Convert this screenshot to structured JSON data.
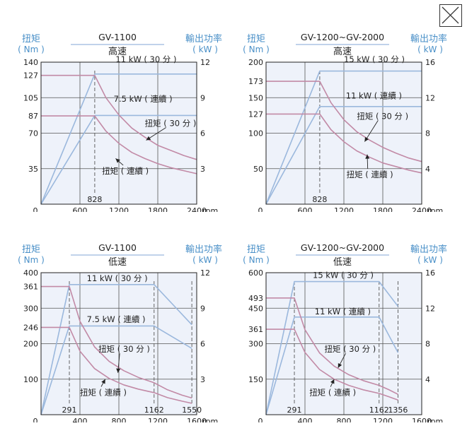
{
  "window": {
    "close_icon": "close-x-icon"
  },
  "colors": {
    "unit_label": "#4a90c8",
    "plot_bg": "#eef2fa",
    "grid": "#555555",
    "power": "#9bb8dd",
    "torque": "#c28aa6",
    "dashed": "#555555",
    "title_rule": "#9bb8dd"
  },
  "axis_units": {
    "torque": "扭矩",
    "torque_unit": "( Nm )",
    "power": "輸出功率",
    "power_unit": "( kW )",
    "rpm": "rpm"
  },
  "chart_data": [
    {
      "type": "line",
      "model": "GV-1100",
      "speed_range": "高速",
      "xlim": [
        0,
        2400
      ],
      "ylim_torque": [
        0,
        140
      ],
      "ylim_power": [
        0,
        12
      ],
      "x_ticks": [
        "0",
        "600",
        "1200",
        "1800",
        "2400"
      ],
      "x_tick_values": [
        0,
        600,
        1200,
        1800,
        2400
      ],
      "y_ticks": [
        "140",
        "127",
        "105",
        "87",
        "70",
        "35"
      ],
      "y_tick_values": [
        140,
        127,
        105,
        87,
        70,
        35
      ],
      "y2_ticks": [
        "12",
        "9",
        "6",
        "3"
      ],
      "y2_tick_values": [
        12,
        9,
        6,
        3
      ],
      "dashed_x": [
        {
          "value": 828,
          "label": "828"
        }
      ],
      "grid_x": [
        600,
        1200,
        1800
      ],
      "grid_y": [
        105,
        70,
        35
      ],
      "series": [
        {
          "name": "11 kW ( 30 分 )",
          "kind": "power",
          "x": [
            0,
            828,
            2400
          ],
          "y": [
            0,
            11.0,
            11.0
          ]
        },
        {
          "name": "7.5 kW ( 連續 )",
          "kind": "power",
          "x": [
            0,
            828,
            2400
          ],
          "y": [
            0,
            7.5,
            7.5
          ]
        },
        {
          "name": "扭矩 ( 30 分 )",
          "kind": "torque",
          "x": [
            0,
            828,
            1000,
            1200,
            1400,
            1600,
            1800,
            2000,
            2200,
            2400
          ],
          "y": [
            127,
            127,
            105,
            88,
            75,
            66,
            58,
            53,
            48,
            44
          ]
        },
        {
          "name": "扭矩 ( 連續 )",
          "kind": "torque",
          "x": [
            0,
            828,
            1000,
            1200,
            1400,
            1600,
            1800,
            2000,
            2200,
            2400
          ],
          "y": [
            87,
            87,
            72,
            60,
            51,
            45,
            40,
            36,
            33,
            30
          ]
        }
      ],
      "labels": [
        {
          "text": "11 kW ( 30 分 )",
          "at_x": 1150,
          "at_y": 140,
          "axis": "torque",
          "arrow": false
        },
        {
          "text": "7.5 kW ( 連續 )",
          "at_x": 1120,
          "at_y": 101,
          "axis": "torque",
          "arrow": false
        },
        {
          "text": "扭矩 ( 30 分 )",
          "at_x": 1600,
          "at_y": 77,
          "axis": "torque",
          "arrow": true,
          "arrow_to": [
            1620,
            63
          ]
        },
        {
          "text": "扭矩 ( 連續 )",
          "at_x": 940,
          "at_y": 30,
          "axis": "torque",
          "arrow": true,
          "arrow_to": [
            1150,
            45
          ]
        }
      ]
    },
    {
      "type": "line",
      "model": "GV-1200~GV-2000",
      "speed_range": "高速",
      "xlim": [
        0,
        2400
      ],
      "ylim_torque": [
        0,
        200
      ],
      "ylim_power": [
        0,
        16
      ],
      "x_ticks": [
        "0",
        "600",
        "1200",
        "1800",
        "2400"
      ],
      "x_tick_values": [
        0,
        600,
        1200,
        1800,
        2400
      ],
      "y_ticks": [
        "200",
        "173",
        "150",
        "127",
        "100",
        "50"
      ],
      "y_tick_values": [
        200,
        173,
        150,
        127,
        100,
        50
      ],
      "y2_ticks": [
        "16",
        "12",
        "8",
        "4"
      ],
      "y2_tick_values": [
        16,
        12,
        8,
        4
      ],
      "dashed_x": [
        {
          "value": 828,
          "label": "828"
        }
      ],
      "grid_x": [
        600,
        1200,
        1800
      ],
      "grid_y": [
        150,
        100,
        50
      ],
      "series": [
        {
          "name": "15 kW ( 30 分 )",
          "kind": "power",
          "x": [
            0,
            828,
            2400
          ],
          "y": [
            0,
            15.0,
            15.0
          ]
        },
        {
          "name": "11 kW ( 連續 )",
          "kind": "power",
          "x": [
            0,
            828,
            2400
          ],
          "y": [
            0,
            11.0,
            11.0
          ]
        },
        {
          "name": "扭矩 ( 30 分 )",
          "kind": "torque",
          "x": [
            0,
            828,
            1000,
            1200,
            1400,
            1600,
            1800,
            2000,
            2200,
            2400
          ],
          "y": [
            173,
            173,
            143,
            119,
            102,
            90,
            80,
            72,
            65,
            60
          ]
        },
        {
          "name": "扭矩 ( 連續 )",
          "kind": "torque",
          "x": [
            0,
            828,
            1000,
            1200,
            1400,
            1600,
            1800,
            2000,
            2200,
            2400
          ],
          "y": [
            127,
            127,
            105,
            88,
            75,
            66,
            58,
            53,
            48,
            44
          ]
        }
      ],
      "labels": [
        {
          "text": "15 kW ( 30 分 )",
          "at_x": 1200,
          "at_y": 200,
          "axis": "torque",
          "arrow": false
        },
        {
          "text": "11 kW ( 連續 )",
          "at_x": 1230,
          "at_y": 149,
          "axis": "torque",
          "arrow": false
        },
        {
          "text": "扭矩 ( 30 分 )",
          "at_x": 1400,
          "at_y": 120,
          "axis": "torque",
          "arrow": true,
          "arrow_to": [
            1520,
            88
          ]
        },
        {
          "text": "扭矩 ( 連續 )",
          "at_x": 1240,
          "at_y": 38,
          "axis": "torque",
          "arrow": true,
          "arrow_to": [
            1560,
            70
          ]
        }
      ]
    },
    {
      "type": "line",
      "model": "GV-1100",
      "speed_range": "低速",
      "xlim": [
        0,
        1600
      ],
      "ylim_torque": [
        0,
        400
      ],
      "ylim_power": [
        0,
        12
      ],
      "x_ticks": [
        "0",
        "400",
        "800",
        "1200",
        "1600"
      ],
      "x_tick_values": [
        0,
        400,
        800,
        1200,
        1600
      ],
      "y_ticks": [
        "400",
        "361",
        "300",
        "246",
        "200",
        "100"
      ],
      "y_tick_values": [
        400,
        361,
        300,
        246,
        200,
        100
      ],
      "y2_ticks": [
        "12",
        "9",
        "6",
        "3"
      ],
      "y2_tick_values": [
        12,
        9,
        6,
        3
      ],
      "dashed_x": [
        {
          "value": 291,
          "label": "291"
        },
        {
          "value": 1162,
          "label": "1162"
        },
        {
          "value": 1550,
          "label": "1550"
        }
      ],
      "grid_x": [
        400,
        800,
        1200
      ],
      "grid_y": [
        300,
        200,
        100
      ],
      "series": [
        {
          "name": "11 kW ( 30 分 )",
          "kind": "power",
          "x": [
            0,
            291,
            1162,
            1550
          ],
          "y": [
            0,
            11.0,
            11.0,
            7.6
          ]
        },
        {
          "name": "7.5 kW ( 連續 )",
          "kind": "power",
          "x": [
            0,
            291,
            1162,
            1550
          ],
          "y": [
            0,
            7.5,
            7.5,
            5.6
          ]
        },
        {
          "name": "扭矩 ( 30 分 )",
          "kind": "torque",
          "x": [
            0,
            291,
            400,
            550,
            700,
            850,
            1000,
            1162,
            1300,
            1450,
            1550
          ],
          "y": [
            361,
            361,
            263,
            191,
            150,
            124,
            105,
            90,
            70,
            55,
            47
          ]
        },
        {
          "name": "扭矩 ( 連續 )",
          "kind": "torque",
          "x": [
            0,
            291,
            400,
            550,
            700,
            850,
            1000,
            1162,
            1300,
            1450,
            1550
          ],
          "y": [
            246,
            246,
            179,
            130,
            102,
            84,
            72,
            62,
            48,
            38,
            32
          ]
        }
      ],
      "labels": [
        {
          "text": "11 kW ( 30 分 )",
          "at_x": 470,
          "at_y": 376,
          "axis": "torque",
          "arrow": false
        },
        {
          "text": "7.5 kW ( 連續 )",
          "at_x": 470,
          "at_y": 261,
          "axis": "torque",
          "arrow": false
        },
        {
          "text": "扭矩 ( 30 分 )",
          "at_x": 590,
          "at_y": 177,
          "axis": "torque",
          "arrow": true,
          "arrow_to": [
            790,
            118
          ]
        },
        {
          "text": "扭矩 ( 連續 )",
          "at_x": 400,
          "at_y": 55,
          "axis": "torque",
          "arrow": true,
          "arrow_to": [
            660,
            100
          ]
        }
      ]
    },
    {
      "type": "line",
      "model": "GV-1200~GV-2000",
      "speed_range": "低速",
      "xlim": [
        0,
        1600
      ],
      "ylim_torque": [
        0,
        600
      ],
      "ylim_power": [
        0,
        16
      ],
      "x_ticks": [
        "0",
        "400",
        "800",
        "1200",
        "1600"
      ],
      "x_tick_values": [
        0,
        400,
        800,
        1200,
        1600
      ],
      "y_ticks": [
        "600",
        "493",
        "450",
        "361",
        "300",
        "150"
      ],
      "y_tick_values": [
        600,
        493,
        450,
        361,
        300,
        150
      ],
      "y2_ticks": [
        "16",
        "12",
        "8",
        "4"
      ],
      "y2_tick_values": [
        16,
        12,
        8,
        4
      ],
      "dashed_x": [
        {
          "value": 291,
          "label": "291"
        },
        {
          "value": 1162,
          "label": "1162"
        },
        {
          "value": 1356,
          "label": "1356"
        }
      ],
      "grid_x": [
        400,
        800,
        1200
      ],
      "grid_y": [
        450,
        300,
        150
      ],
      "series": [
        {
          "name": "15 kW ( 30 分 )",
          "kind": "power",
          "x": [
            0,
            291,
            1162,
            1356
          ],
          "y": [
            0,
            15.0,
            15.0,
            12.2
          ]
        },
        {
          "name": "11 kW ( 連續 )",
          "kind": "power",
          "x": [
            0,
            291,
            1162,
            1356
          ],
          "y": [
            0,
            11.0,
            11.0,
            7.0
          ]
        },
        {
          "name": "扭矩 ( 30 分 )",
          "kind": "torque",
          "x": [
            0,
            291,
            400,
            550,
            700,
            850,
            1000,
            1162,
            1260,
            1356
          ],
          "y": [
            493,
            493,
            359,
            261,
            205,
            169,
            144,
            124,
            106,
            86
          ]
        },
        {
          "name": "扭矩 ( 連續 )",
          "kind": "torque",
          "x": [
            0,
            291,
            400,
            550,
            700,
            850,
            1000,
            1162,
            1260,
            1356
          ],
          "y": [
            361,
            361,
            263,
            191,
            150,
            124,
            105,
            90,
            76,
            62
          ]
        }
      ],
      "labels": [
        {
          "text": "15 kW ( 30 分 )",
          "at_x": 480,
          "at_y": 578,
          "axis": "torque",
          "arrow": false
        },
        {
          "text": "11 kW ( 連續 )",
          "at_x": 500,
          "at_y": 424,
          "axis": "torque",
          "arrow": false
        },
        {
          "text": "扭矩 ( 30 分 )",
          "at_x": 600,
          "at_y": 265,
          "axis": "torque",
          "arrow": true,
          "arrow_to": [
            740,
            198
          ]
        },
        {
          "text": "扭矩 ( 連續 )",
          "at_x": 445,
          "at_y": 82,
          "axis": "torque",
          "arrow": true,
          "arrow_to": [
            700,
            150
          ]
        }
      ]
    }
  ]
}
